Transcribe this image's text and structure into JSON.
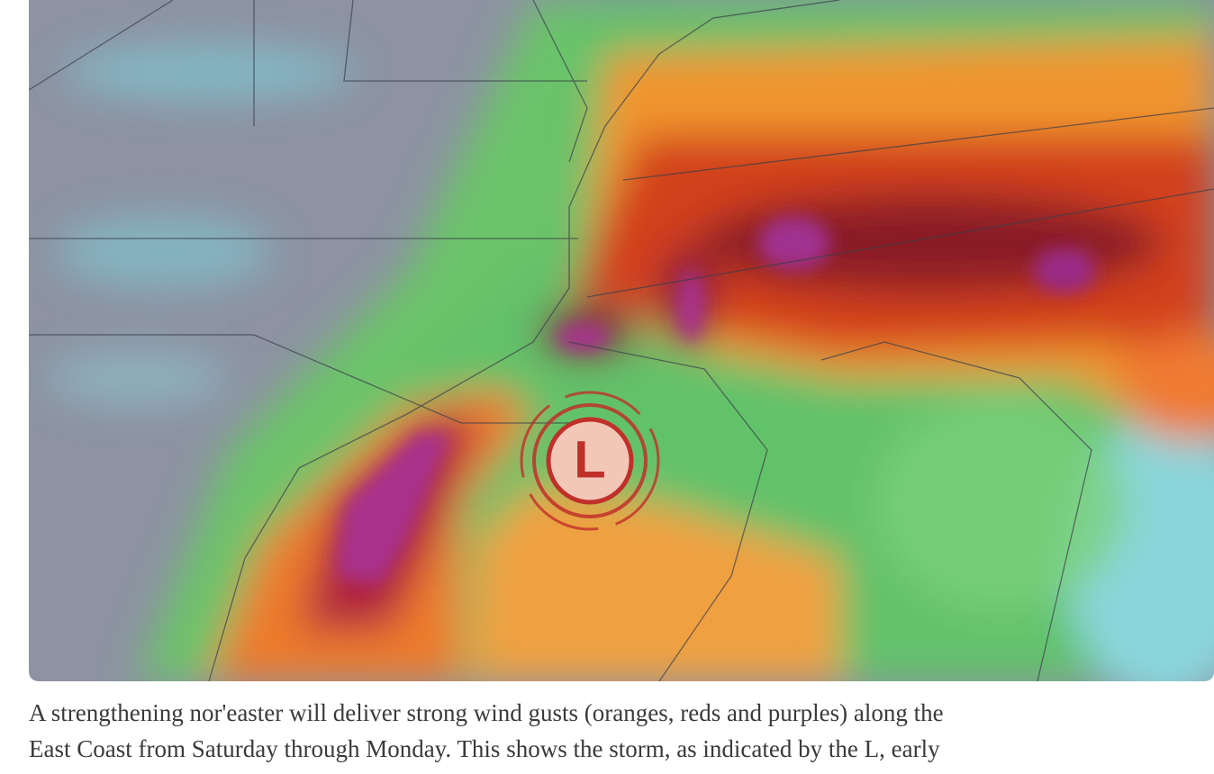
{
  "figure": {
    "map_symbol": "L",
    "caption_lines": [
      "A strengthening nor'easter will deliver strong wind gusts (oranges, reds and purples) along the",
      "East Coast from Saturday through Monday. This shows the storm, as indicated by the L, early"
    ]
  }
}
